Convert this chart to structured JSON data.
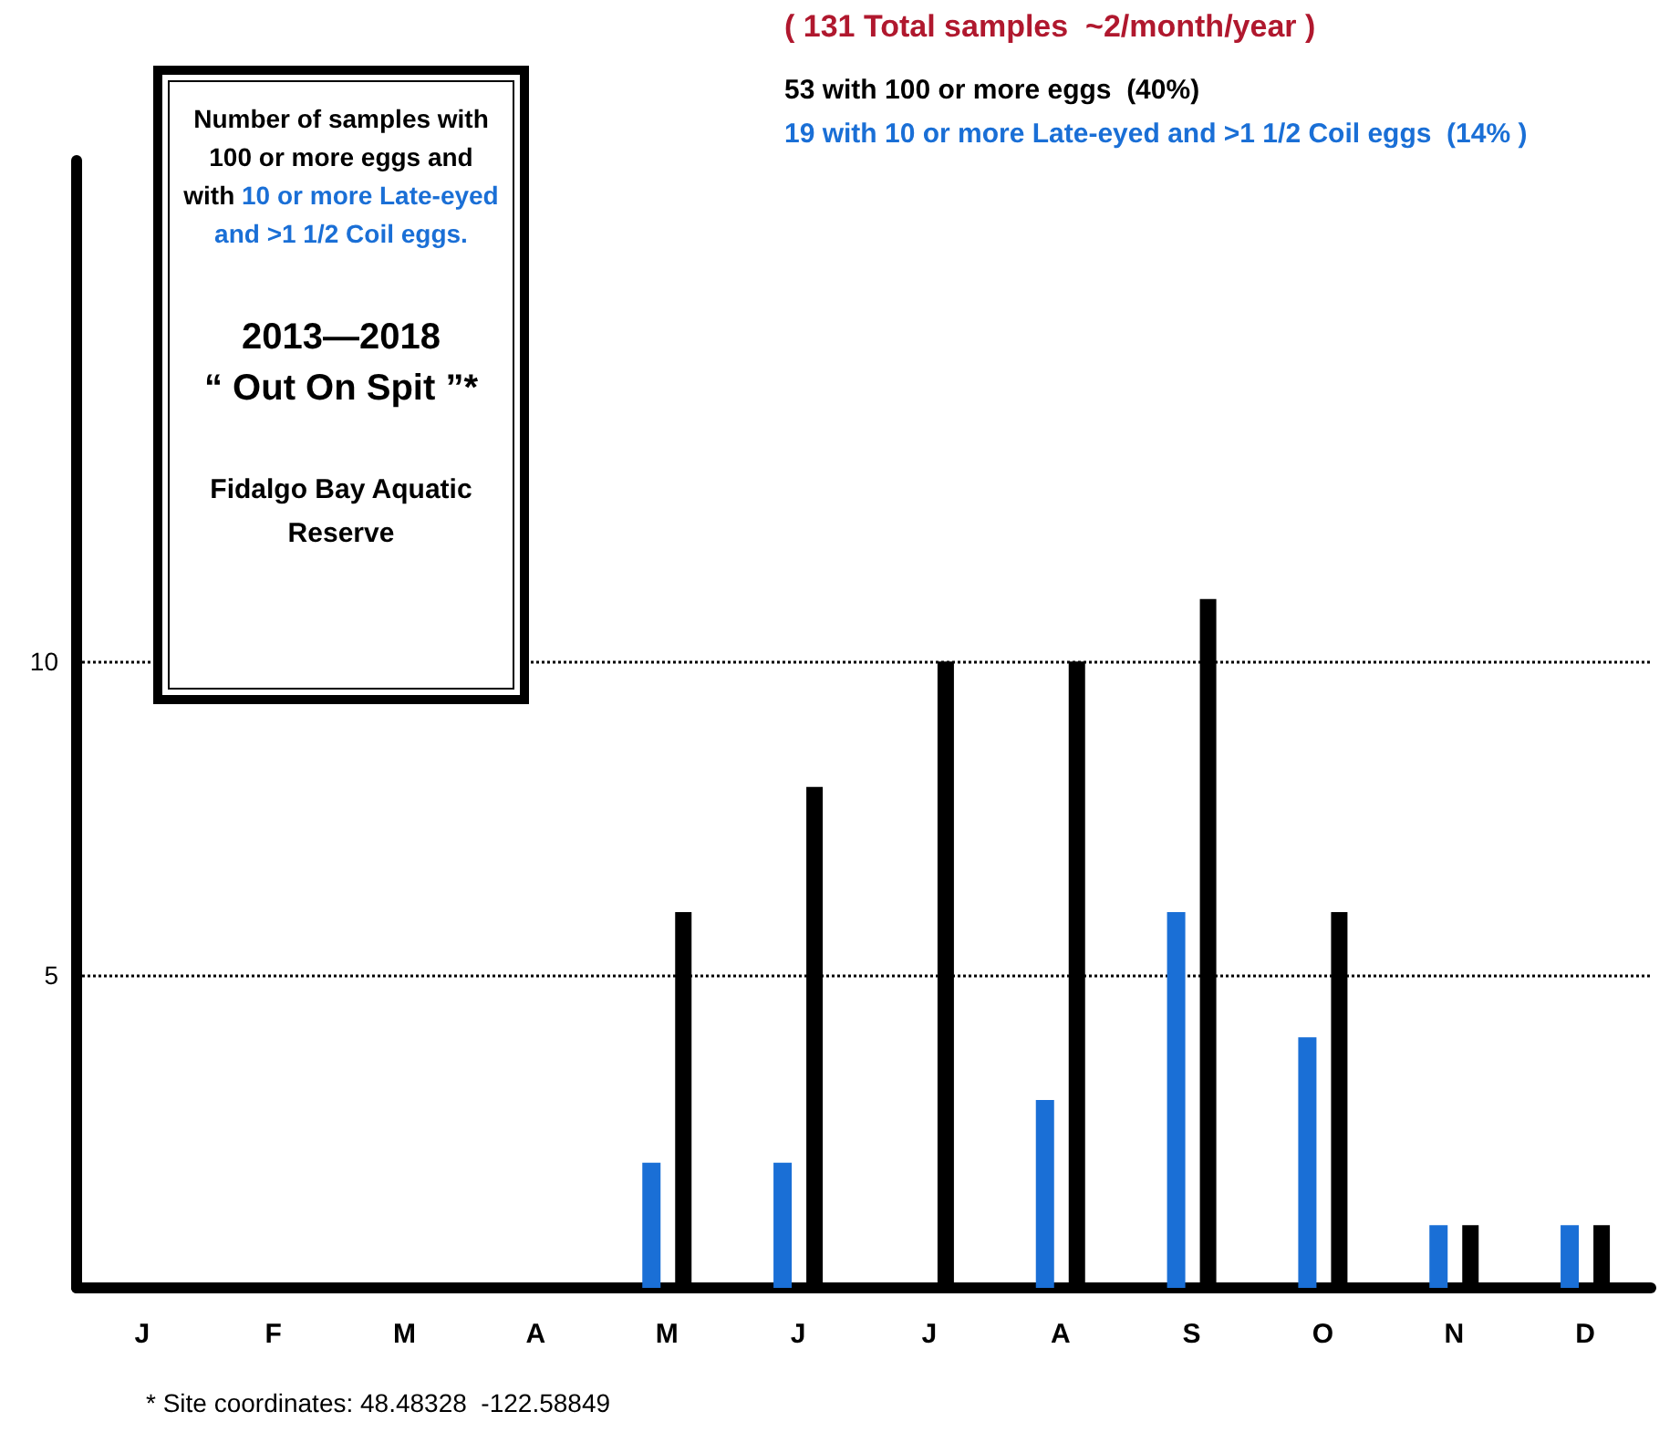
{
  "chart_data": {
    "type": "bar",
    "categories": [
      "J",
      "F",
      "M",
      "A",
      "M",
      "J",
      "J",
      "A",
      "S",
      "O",
      "N",
      "D"
    ],
    "series": [
      {
        "color": "#1a6fd6",
        "values": [
          0,
          0,
          0,
          0,
          2,
          2,
          0,
          3,
          6,
          4,
          1,
          1
        ]
      },
      {
        "color": "#000000",
        "values": [
          0,
          0,
          0,
          0,
          6,
          8,
          10,
          10,
          11,
          6,
          1,
          1
        ]
      }
    ],
    "ylim": [
      0,
      18
    ],
    "yticks": [
      5,
      10
    ],
    "grid": "y",
    "annotations": [
      "Number of samples with 100 or more eggs and with",
      "10 or more Late-eyed and >1 1/2 Coil eggs.",
      "2013—2018",
      "“ Out On Spit ”*",
      "Fidalgo Bay Aquatic Reserve",
      "( 131 Total samples  ~2/month/year )",
      "53 with 100 or more eggs  (40%)",
      "19 with 10 or more Late-eyed and >1 1/2 Coil eggs  (14% )",
      "* Site coordinates: 48.48328  -122.58849"
    ]
  }
}
